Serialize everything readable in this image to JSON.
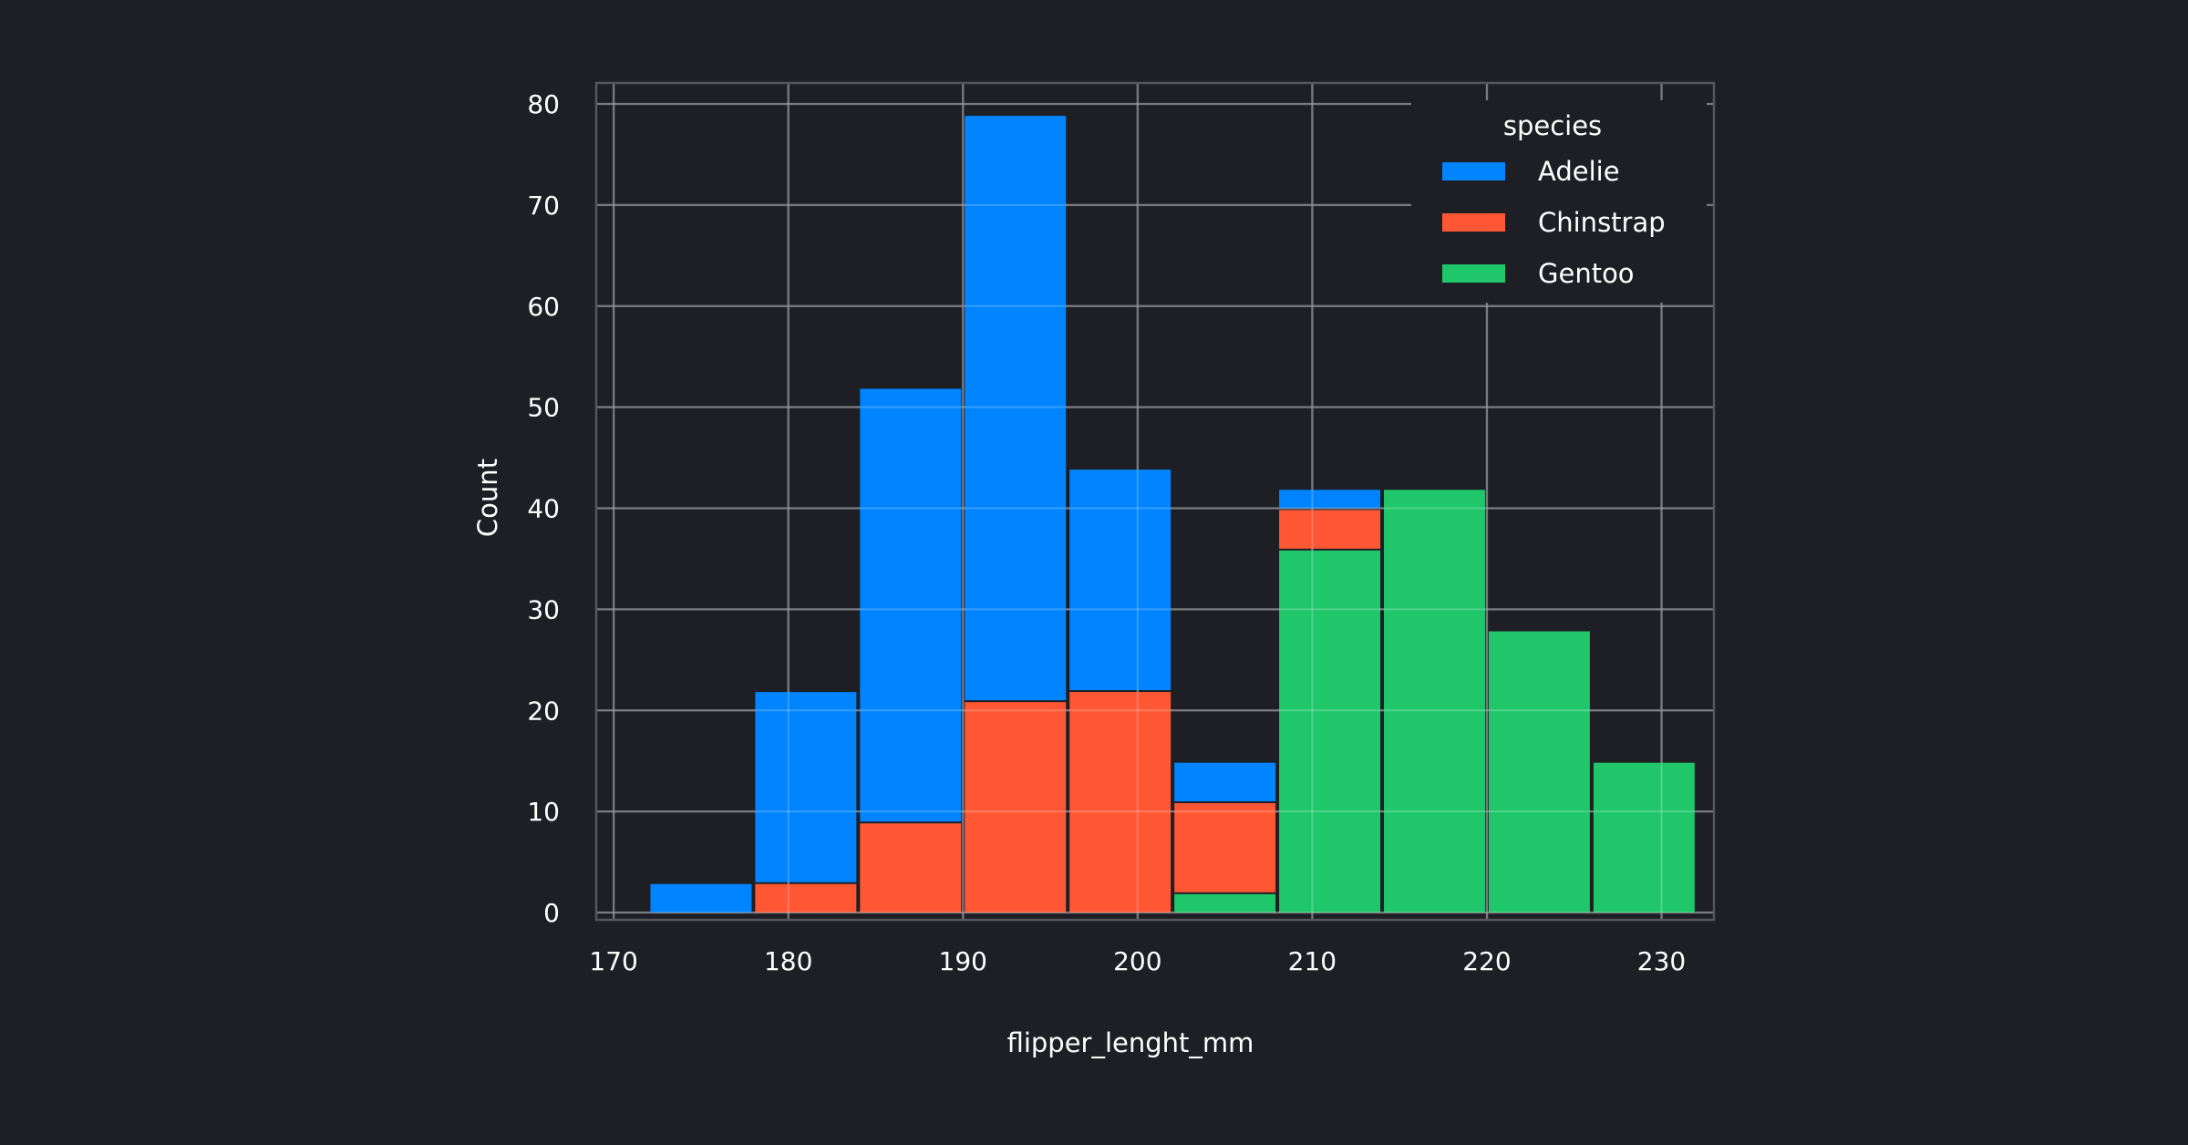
{
  "chart_data": {
    "type": "bar",
    "stacked": true,
    "xlabel": "flipper_lenght_mm",
    "ylabel": "Count",
    "xlim": [
      169,
      233
    ],
    "ylim": [
      0,
      80
    ],
    "x_ticks": [
      170,
      180,
      190,
      200,
      210,
      220,
      230
    ],
    "y_ticks": [
      0,
      10,
      20,
      30,
      40,
      50,
      60,
      70,
      80
    ],
    "grid": true,
    "bin_edges": [
      172,
      178,
      184,
      190,
      196,
      202,
      208,
      214,
      220,
      226,
      232
    ],
    "legend": {
      "title": "species",
      "position": "top-right"
    },
    "series": [
      {
        "name": "Gentoo",
        "color": "#20c76a",
        "values": [
          0,
          0,
          0,
          0,
          0,
          2,
          36,
          42,
          28,
          15
        ]
      },
      {
        "name": "Chinstrap",
        "color": "#ff5733",
        "values": [
          0,
          3,
          9,
          21,
          22,
          9,
          4,
          0,
          0,
          0
        ]
      },
      {
        "name": "Adelie",
        "color": "#0084ff",
        "values": [
          3,
          19,
          43,
          58,
          22,
          4,
          2,
          0,
          0,
          0
        ]
      }
    ],
    "legend_order": [
      "Adelie",
      "Chinstrap",
      "Gentoo"
    ]
  }
}
